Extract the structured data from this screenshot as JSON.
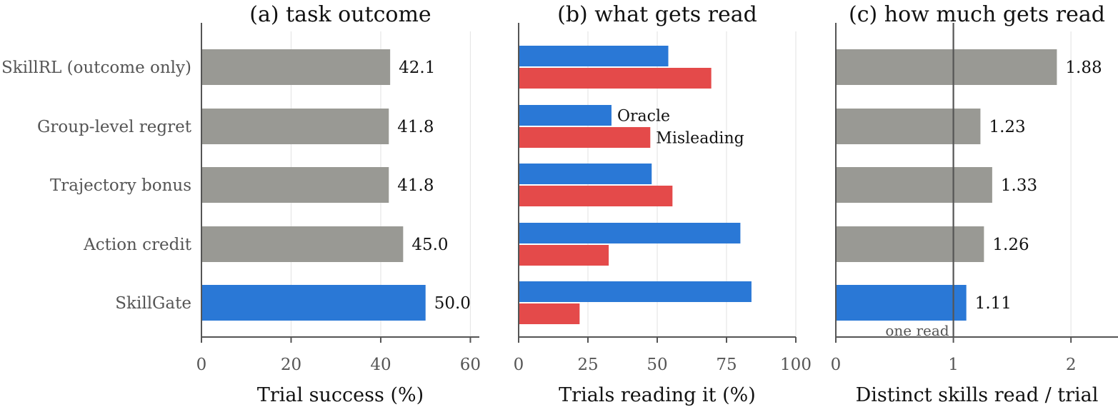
{
  "colors": {
    "gray": "#999994",
    "blue": "#2a78d6",
    "red": "#e44a4a",
    "axis": "#555555",
    "grid": "#e6e6e6"
  },
  "chart_data": [
    {
      "type": "bar",
      "orientation": "horizontal",
      "title": "(a) task outcome",
      "xlabel": "Trial success (%)",
      "xlim": [
        0,
        62
      ],
      "xticks": [
        0,
        20,
        40,
        60
      ],
      "grid": true,
      "categories": [
        "SkillRL (outcome only)",
        "Group-level regret",
        "Trajectory bonus",
        "Action credit",
        "SkillGate"
      ],
      "values": [
        42.1,
        41.8,
        41.8,
        45.0,
        50.0
      ],
      "value_labels": [
        "42.1",
        "41.8",
        "41.8",
        "45.0",
        "50.0"
      ],
      "highlight": "SkillGate"
    },
    {
      "type": "bar",
      "orientation": "horizontal",
      "title": "(b) what gets read",
      "xlabel": "Trials reading it (%)",
      "xlim": [
        0,
        100
      ],
      "xticks": [
        0,
        25,
        50,
        75,
        100
      ],
      "grid": true,
      "categories": [
        "SkillRL (outcome only)",
        "Group-level regret",
        "Trajectory bonus",
        "Action credit",
        "SkillGate"
      ],
      "series": [
        {
          "name": "Oracle",
          "color": "#2a78d6",
          "values": [
            54,
            33.5,
            48,
            80,
            84
          ]
        },
        {
          "name": "Misleading",
          "color": "#e44a4a",
          "values": [
            69.5,
            47.5,
            55.5,
            32.5,
            22
          ]
        }
      ],
      "legend_placement": "inline, next to second group"
    },
    {
      "type": "bar",
      "orientation": "horizontal",
      "title": "(c) how much gets read",
      "xlabel": "Distinct skills read / trial",
      "xlim": [
        0,
        2.4
      ],
      "xticks": [
        0,
        1,
        2
      ],
      "grid": true,
      "categories": [
        "SkillRL (outcome only)",
        "Group-level regret",
        "Trajectory bonus",
        "Action credit",
        "SkillGate"
      ],
      "values": [
        1.88,
        1.23,
        1.33,
        1.26,
        1.11
      ],
      "value_labels": [
        "1.88",
        "1.23",
        "1.33",
        "1.26",
        "1.11"
      ],
      "highlight": "SkillGate",
      "reference_line": {
        "value": 1,
        "label": "one read"
      }
    }
  ]
}
